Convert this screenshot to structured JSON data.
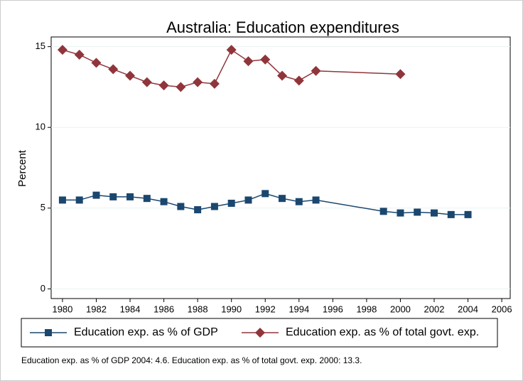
{
  "chart_data": {
    "type": "line",
    "title": "Australia: Education expenditures",
    "y_label": "Percent",
    "note": "Education exp. as % of GDP 2004: 4.6. Education exp. as % of total govt. exp. 2000: 13.3.",
    "xlim": [
      1979.33,
      2006.5
    ],
    "xticks": [
      1980,
      1982,
      1984,
      1986,
      1988,
      1990,
      1992,
      1994,
      1996,
      1998,
      2000,
      2002,
      2004,
      2006
    ],
    "ylim": [
      -0.6,
      15.6
    ],
    "yticks": [
      0,
      5,
      10,
      15
    ],
    "grid": true,
    "legend": "bottom",
    "series": [
      {
        "name": "Education exp. as % of GDP",
        "color": "#1a476f",
        "marker": "square",
        "x": [
          1980,
          1981,
          1982,
          1983,
          1984,
          1985,
          1986,
          1987,
          1988,
          1989,
          1990,
          1991,
          1992,
          1993,
          1994,
          1995,
          1999,
          2000,
          2001,
          2002,
          2003,
          2004
        ],
        "values": [
          5.5,
          5.5,
          5.8,
          5.7,
          5.7,
          5.6,
          5.4,
          5.1,
          4.9,
          5.1,
          5.3,
          5.5,
          5.9,
          5.6,
          5.4,
          5.5,
          4.8,
          4.7,
          4.75,
          4.7,
          4.6,
          4.6
        ]
      },
      {
        "name": "Education exp. as % of total govt. exp.",
        "color": "#90353b",
        "marker": "diamond",
        "x": [
          1980,
          1981,
          1982,
          1983,
          1984,
          1985,
          1986,
          1987,
          1988,
          1989,
          1990,
          1991,
          1992,
          1993,
          1994,
          1995,
          2000
        ],
        "values": [
          14.8,
          14.5,
          14.0,
          13.6,
          13.2,
          12.8,
          12.6,
          12.5,
          12.8,
          12.7,
          14.8,
          14.1,
          14.2,
          13.2,
          12.9,
          13.5,
          13.3
        ]
      }
    ]
  }
}
